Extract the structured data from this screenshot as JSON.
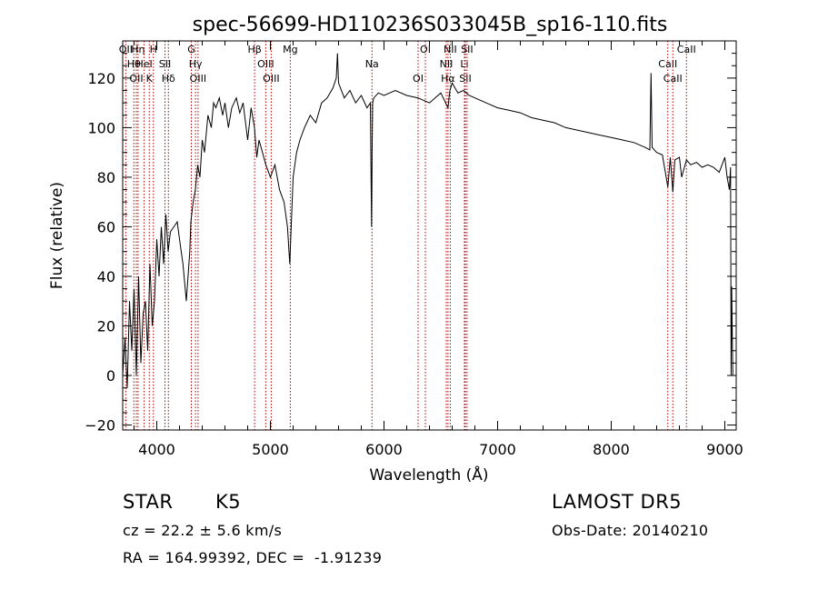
{
  "info": {
    "object_class": "STAR",
    "subclass": "K5",
    "survey": "LAMOST DR5",
    "redshift_line": "cz = 22.2 ± 5.6 km/s",
    "obs_date": "Obs-Date: 20140210",
    "coords": "RA = 164.99392, DEC =  -1.91239"
  },
  "chart_data": {
    "type": "line",
    "title": "spec-56699-HD110236S033045B_sp16-110.fits",
    "xlabel": "Wavelength (Å)",
    "ylabel": "Flux (relative)",
    "xlim": [
      3700,
      9100
    ],
    "ylim": [
      -22,
      135
    ],
    "x_ticks": [
      4000,
      5000,
      6000,
      7000,
      8000,
      9000
    ],
    "y_ticks": [
      -20,
      0,
      20,
      40,
      60,
      80,
      100,
      120
    ],
    "grid": false,
    "colors": {
      "spectrum": "#000000",
      "line_marker": "#b00000"
    },
    "series": [
      {
        "x": [
          3700,
          3720,
          3740,
          3760,
          3780,
          3800,
          3820,
          3840,
          3860,
          3880,
          3900,
          3920,
          3940,
          3960,
          3980,
          4000,
          4020,
          4040,
          4060,
          4080,
          4100,
          4120,
          4150,
          4180,
          4200,
          4230,
          4260,
          4290,
          4300,
          4320,
          4340,
          4360,
          4380,
          4400,
          4420,
          4450,
          4480,
          4500,
          4520,
          4550,
          4580,
          4600,
          4630,
          4660,
          4700,
          4730,
          4760,
          4800,
          4830,
          4860,
          4880,
          4900,
          4930,
          4960,
          5000,
          5040,
          5080,
          5120,
          5150,
          5170,
          5185,
          5200,
          5230,
          5260,
          5300,
          5350,
          5400,
          5450,
          5500,
          5550,
          5580,
          5590,
          5600,
          5650,
          5700,
          5750,
          5800,
          5850,
          5880,
          5890,
          5895,
          5900,
          5910,
          5950,
          6000,
          6100,
          6200,
          6300,
          6400,
          6500,
          6563,
          6580,
          6600,
          6650,
          6700,
          6750,
          6800,
          6900,
          7000,
          7100,
          7200,
          7300,
          7400,
          7500,
          7600,
          7700,
          7800,
          7900,
          8000,
          8100,
          8200,
          8300,
          8340,
          8350,
          8360,
          8400,
          8450,
          8498,
          8520,
          8542,
          8560,
          8600,
          8620,
          8662,
          8700,
          8750,
          8800,
          8850,
          8900,
          8950,
          9000,
          9020,
          9040,
          9050,
          9055,
          9060,
          9070
        ],
        "y": [
          0,
          15,
          -5,
          30,
          10,
          35,
          0,
          40,
          5,
          25,
          30,
          10,
          45,
          20,
          30,
          55,
          40,
          60,
          45,
          65,
          50,
          58,
          60,
          62,
          55,
          45,
          30,
          50,
          62,
          70,
          75,
          85,
          80,
          95,
          90,
          105,
          100,
          110,
          108,
          112,
          105,
          110,
          100,
          108,
          112,
          106,
          110,
          95,
          108,
          100,
          88,
          95,
          90,
          85,
          80,
          85,
          75,
          70,
          60,
          45,
          62,
          80,
          90,
          95,
          100,
          105,
          102,
          110,
          112,
          116,
          120,
          130,
          118,
          112,
          115,
          110,
          113,
          108,
          110,
          60,
          90,
          110,
          112,
          114,
          113,
          115,
          113,
          112,
          110,
          114,
          108,
          115,
          118,
          114,
          115,
          113,
          112,
          110,
          108,
          107,
          106,
          104,
          103,
          102,
          100,
          99,
          98,
          97,
          96,
          95,
          94,
          92,
          91,
          122,
          92,
          90,
          89,
          76,
          88,
          74,
          87,
          88,
          80,
          87,
          85,
          86,
          84,
          85,
          84,
          82,
          88,
          80,
          75,
          84,
          0,
          36,
          0
        ],
        "color": "#000000"
      }
    ],
    "markers": [
      {
        "x": 3727,
        "label": "OII"
      },
      {
        "x": 3798,
        "label": "Hθ"
      },
      {
        "x": 3820,
        "label": "OII"
      },
      {
        "x": 3835,
        "label": "Hη"
      },
      {
        "x": 3889,
        "label": "HeI"
      },
      {
        "x": 3934,
        "label": "K"
      },
      {
        "x": 3970,
        "label": "H"
      },
      {
        "x": 4072,
        "label": "SII"
      },
      {
        "x": 4102,
        "label": "Hδ"
      },
      {
        "x": 4304,
        "label": "G"
      },
      {
        "x": 4341,
        "label": "Hγ"
      },
      {
        "x": 4363,
        "label": "OIII"
      },
      {
        "x": 4861,
        "label": "Hβ"
      },
      {
        "x": 4959,
        "label": "OIII"
      },
      {
        "x": 5007,
        "label": "OIII"
      },
      {
        "x": 5175,
        "label": "Mg"
      },
      {
        "x": 5894,
        "label": "Na"
      },
      {
        "x": 6300,
        "label": "OI"
      },
      {
        "x": 6364,
        "label": "OI"
      },
      {
        "x": 6548,
        "label": "NII"
      },
      {
        "x": 6563,
        "label": "Hα"
      },
      {
        "x": 6583,
        "label": "NII"
      },
      {
        "x": 6708,
        "label": "Li"
      },
      {
        "x": 6716,
        "label": "SII"
      },
      {
        "x": 6731,
        "label": "SII"
      },
      {
        "x": 8498,
        "label": "CaII"
      },
      {
        "x": 8542,
        "label": "CaII"
      },
      {
        "x": 8662,
        "label": "CaII"
      }
    ]
  }
}
